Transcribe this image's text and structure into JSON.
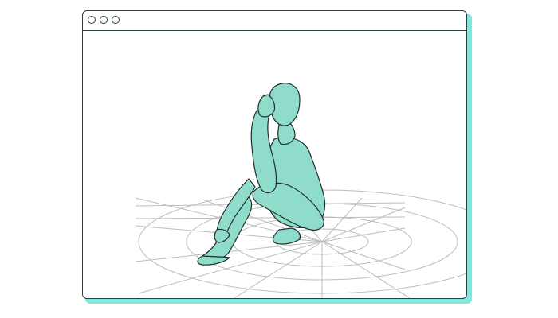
{
  "window": {
    "controls": [
      "close",
      "minimize",
      "maximize"
    ]
  },
  "viewport": {
    "content": "3d-pose-figure",
    "figure_color": "#8fdccb",
    "grid_color": "#b9b9b9",
    "accent_shadow": "#7fe8da"
  }
}
